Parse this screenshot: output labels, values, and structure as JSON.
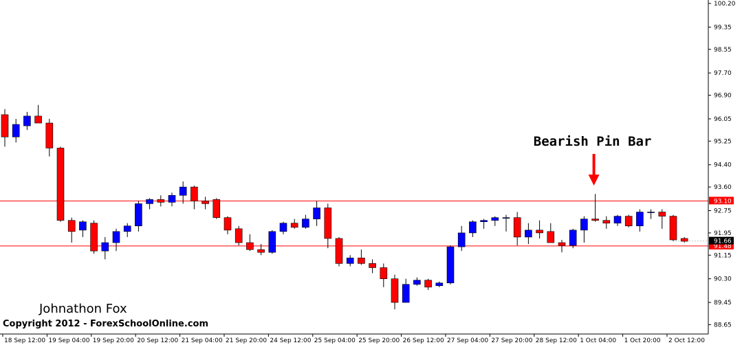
{
  "colors": {
    "bull": "#0000ff",
    "bear": "#ff0000",
    "wick": "#000000",
    "level_line": "#ff0000",
    "price_label_bg": "#000000"
  },
  "chart_data": {
    "type": "candlestick",
    "ylim": [
      88.25,
      100.4
    ],
    "yticks": [
      100.2,
      99.35,
      98.55,
      97.7,
      96.9,
      96.05,
      95.25,
      94.4,
      93.6,
      92.75,
      91.95,
      91.15,
      90.3,
      89.45,
      88.65
    ],
    "x_labels": [
      "18 Sep 12:00",
      "19 Sep 04:00",
      "19 Sep 20:00",
      "20 Sep 12:00",
      "21 Sep 04:00",
      "21 Sep 20:00",
      "24 Sep 12:00",
      "25 Sep 04:00",
      "25 Sep 20:00",
      "26 Sep 12:00",
      "27 Sep 04:00",
      "27 Sep 20:00",
      "28 Sep 12:00",
      "1 Oct 04:00",
      "1 Oct 20:00",
      "2 Oct 12:00"
    ],
    "levels": [
      {
        "value": 93.1,
        "label": "93.10"
      },
      {
        "value": 91.48,
        "label": "91.48"
      }
    ],
    "current_price": {
      "value": 91.66,
      "label": "91.66"
    },
    "candles": [
      {
        "o": 96.2,
        "h": 96.4,
        "l": 95.05,
        "c": 95.4
      },
      {
        "o": 95.4,
        "h": 96.05,
        "l": 95.2,
        "c": 95.85
      },
      {
        "o": 95.8,
        "h": 96.3,
        "l": 95.65,
        "c": 96.15
      },
      {
        "o": 96.15,
        "h": 96.55,
        "l": 95.9,
        "c": 95.9
      },
      {
        "o": 95.9,
        "h": 96.05,
        "l": 94.7,
        "c": 95.0
      },
      {
        "o": 95.0,
        "h": 95.05,
        "l": 92.35,
        "c": 92.4
      },
      {
        "o": 92.4,
        "h": 92.5,
        "l": 91.6,
        "c": 92.0
      },
      {
        "o": 92.05,
        "h": 92.4,
        "l": 91.8,
        "c": 92.35
      },
      {
        "o": 92.3,
        "h": 92.4,
        "l": 91.2,
        "c": 91.3
      },
      {
        "o": 91.3,
        "h": 91.8,
        "l": 91.0,
        "c": 91.6
      },
      {
        "o": 91.6,
        "h": 92.1,
        "l": 91.3,
        "c": 92.0
      },
      {
        "o": 92.0,
        "h": 92.3,
        "l": 91.8,
        "c": 92.2
      },
      {
        "o": 92.2,
        "h": 93.1,
        "l": 92.0,
        "c": 93.0
      },
      {
        "o": 93.0,
        "h": 93.2,
        "l": 92.8,
        "c": 93.15
      },
      {
        "o": 93.15,
        "h": 93.3,
        "l": 92.9,
        "c": 93.05
      },
      {
        "o": 93.05,
        "h": 93.4,
        "l": 92.9,
        "c": 93.3
      },
      {
        "o": 93.3,
        "h": 93.8,
        "l": 93.0,
        "c": 93.6
      },
      {
        "o": 93.6,
        "h": 93.65,
        "l": 92.8,
        "c": 93.1
      },
      {
        "o": 93.1,
        "h": 93.25,
        "l": 92.8,
        "c": 93.0
      },
      {
        "o": 93.15,
        "h": 93.2,
        "l": 92.45,
        "c": 92.5
      },
      {
        "o": 92.5,
        "h": 92.55,
        "l": 91.9,
        "c": 92.05
      },
      {
        "o": 92.1,
        "h": 92.2,
        "l": 91.5,
        "c": 91.6
      },
      {
        "o": 91.6,
        "h": 91.9,
        "l": 91.3,
        "c": 91.35
      },
      {
        "o": 91.35,
        "h": 91.55,
        "l": 91.15,
        "c": 91.25
      },
      {
        "o": 91.25,
        "h": 92.05,
        "l": 91.2,
        "c": 92.0
      },
      {
        "o": 92.0,
        "h": 92.35,
        "l": 91.9,
        "c": 92.3
      },
      {
        "o": 92.3,
        "h": 92.45,
        "l": 92.1,
        "c": 92.15
      },
      {
        "o": 92.15,
        "h": 92.6,
        "l": 92.1,
        "c": 92.45
      },
      {
        "o": 92.45,
        "h": 93.1,
        "l": 92.2,
        "c": 92.85
      },
      {
        "o": 92.85,
        "h": 93.0,
        "l": 91.4,
        "c": 91.75
      },
      {
        "o": 91.75,
        "h": 91.8,
        "l": 90.75,
        "c": 90.85
      },
      {
        "o": 90.85,
        "h": 91.15,
        "l": 90.75,
        "c": 91.05
      },
      {
        "o": 91.05,
        "h": 91.35,
        "l": 90.8,
        "c": 90.85
      },
      {
        "o": 90.85,
        "h": 91.0,
        "l": 90.5,
        "c": 90.7
      },
      {
        "o": 90.7,
        "h": 90.85,
        "l": 90.0,
        "c": 90.3
      },
      {
        "o": 90.3,
        "h": 90.45,
        "l": 89.2,
        "c": 89.45
      },
      {
        "o": 89.45,
        "h": 90.3,
        "l": 89.45,
        "c": 90.1
      },
      {
        "o": 90.1,
        "h": 90.35,
        "l": 90.05,
        "c": 90.25
      },
      {
        "o": 90.25,
        "h": 90.3,
        "l": 89.9,
        "c": 90.0
      },
      {
        "o": 90.05,
        "h": 90.2,
        "l": 90.0,
        "c": 90.15
      },
      {
        "o": 90.15,
        "h": 91.5,
        "l": 90.1,
        "c": 91.45
      },
      {
        "o": 91.45,
        "h": 92.2,
        "l": 91.3,
        "c": 91.95
      },
      {
        "o": 91.95,
        "h": 92.4,
        "l": 91.8,
        "c": 92.35
      },
      {
        "o": 92.35,
        "h": 92.45,
        "l": 92.1,
        "c": 92.4
      },
      {
        "o": 92.4,
        "h": 92.55,
        "l": 92.2,
        "c": 92.5
      },
      {
        "o": 92.5,
        "h": 92.6,
        "l": 92.0,
        "c": 92.5
      },
      {
        "o": 92.5,
        "h": 92.7,
        "l": 91.5,
        "c": 91.8
      },
      {
        "o": 91.8,
        "h": 92.3,
        "l": 91.55,
        "c": 92.05
      },
      {
        "o": 92.05,
        "h": 92.4,
        "l": 91.75,
        "c": 91.95
      },
      {
        "o": 92.0,
        "h": 92.3,
        "l": 91.6,
        "c": 91.6
      },
      {
        "o": 91.6,
        "h": 91.7,
        "l": 91.25,
        "c": 91.5
      },
      {
        "o": 91.5,
        "h": 92.1,
        "l": 91.4,
        "c": 92.05
      },
      {
        "o": 92.05,
        "h": 92.55,
        "l": 91.6,
        "c": 92.45
      },
      {
        "o": 92.45,
        "h": 93.35,
        "l": 92.35,
        "c": 92.4
      },
      {
        "o": 92.4,
        "h": 92.55,
        "l": 92.1,
        "c": 92.3
      },
      {
        "o": 92.3,
        "h": 92.6,
        "l": 92.2,
        "c": 92.55
      },
      {
        "o": 92.55,
        "h": 92.6,
        "l": 92.15,
        "c": 92.2
      },
      {
        "o": 92.2,
        "h": 92.8,
        "l": 92.0,
        "c": 92.7
      },
      {
        "o": 92.7,
        "h": 92.8,
        "l": 92.45,
        "c": 92.7
      },
      {
        "o": 92.7,
        "h": 92.8,
        "l": 92.1,
        "c": 92.55
      },
      {
        "o": 92.55,
        "h": 92.6,
        "l": 91.65,
        "c": 91.7
      },
      {
        "o": 91.75,
        "h": 91.8,
        "l": 91.6,
        "c": 91.65
      }
    ],
    "annotations": [
      {
        "text": "Bearish Pin Bar",
        "candle_index": 53
      }
    ]
  },
  "watermark": {
    "author": "Johnathon Fox",
    "copyright": "Copyright 2012 - ForexSchoolOnline.com"
  }
}
